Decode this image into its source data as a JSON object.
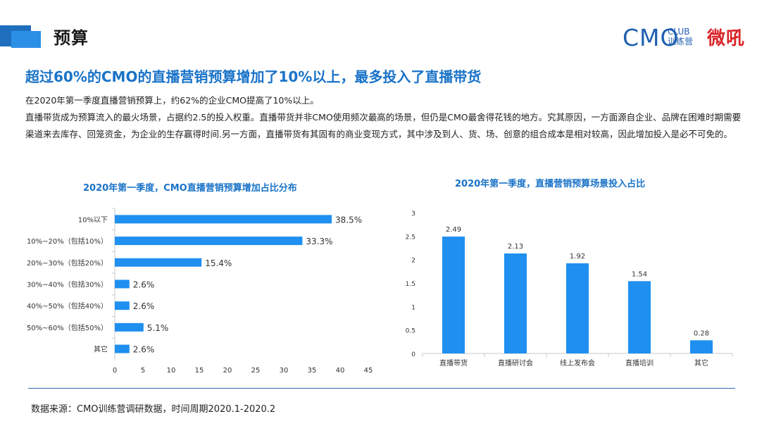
{
  "header": {
    "section_title": "预算",
    "logo_cmo": "CMO",
    "logo_club_line1": "CLUB",
    "logo_club_line2": "训练营",
    "logo_partner": "微吼"
  },
  "headline": "超过60%的CMO的直播营销预算增加了10%以上，最多投入了直播带货",
  "body": {
    "para1": "在2020年第一季度直播营销预算上，约62%的企业CMO提高了10%以上。",
    "para2": "直播带货成为预算流入的最火场景，占据约2.5的投入权重。直播带货并非CMO使用频次最高的场景，但仍是CMO最舍得花钱的地方。究其原因，一方面源自企业、品牌在困难时期需要渠道来去库存、回笼资金，为企业的生存赢得时间.另一方面，直播带货有其固有的商业变现方式，其中涉及到人、货、场、创意的组合成本是相对较高，因此增加投入是必不可免的。"
  },
  "colors": {
    "accent": "#1a73c8",
    "bar": "#1f8ff0"
  },
  "chart_data": [
    {
      "type": "bar",
      "orientation": "horizontal",
      "title": "2020年第一季度，CMO直播营销预算增加占比分布",
      "categories": [
        "10%以下",
        "10%~20%（包括10%）",
        "20%~30%（包括20%）",
        "30%~40%（包括30%）",
        "40%~50%（包括40%）",
        "50%~60%（包括50%）",
        "其它"
      ],
      "values": [
        38.5,
        33.3,
        15.4,
        2.6,
        2.6,
        5.1,
        2.6
      ],
      "value_labels": [
        "38.5%",
        "33.3%",
        "15.4%",
        "2.6%",
        "2.6%",
        "5.1%",
        "2.6%"
      ],
      "xlim": [
        0,
        45
      ],
      "xticks": [
        "0",
        "5",
        "10",
        "15",
        "20",
        "25",
        "30",
        "35",
        "40",
        "45"
      ]
    },
    {
      "type": "bar",
      "orientation": "vertical",
      "title": "2020年第一季度，直播营销预算场景投入占比",
      "categories": [
        "直播带货",
        "直播研讨会",
        "线上发布会",
        "直播培训",
        "其它"
      ],
      "values": [
        2.49,
        2.13,
        1.92,
        1.54,
        0.28
      ],
      "value_labels": [
        "2.49",
        "2.13",
        "1.92",
        "1.54",
        "0.28"
      ],
      "ylim": [
        0,
        3
      ],
      "yticks": [
        "0",
        "0.5",
        "1",
        "1.5",
        "2",
        "2.5",
        "3"
      ]
    }
  ],
  "footer": "数据来源：CMO训练营调研数据，时间周期2020.1-2020.2"
}
